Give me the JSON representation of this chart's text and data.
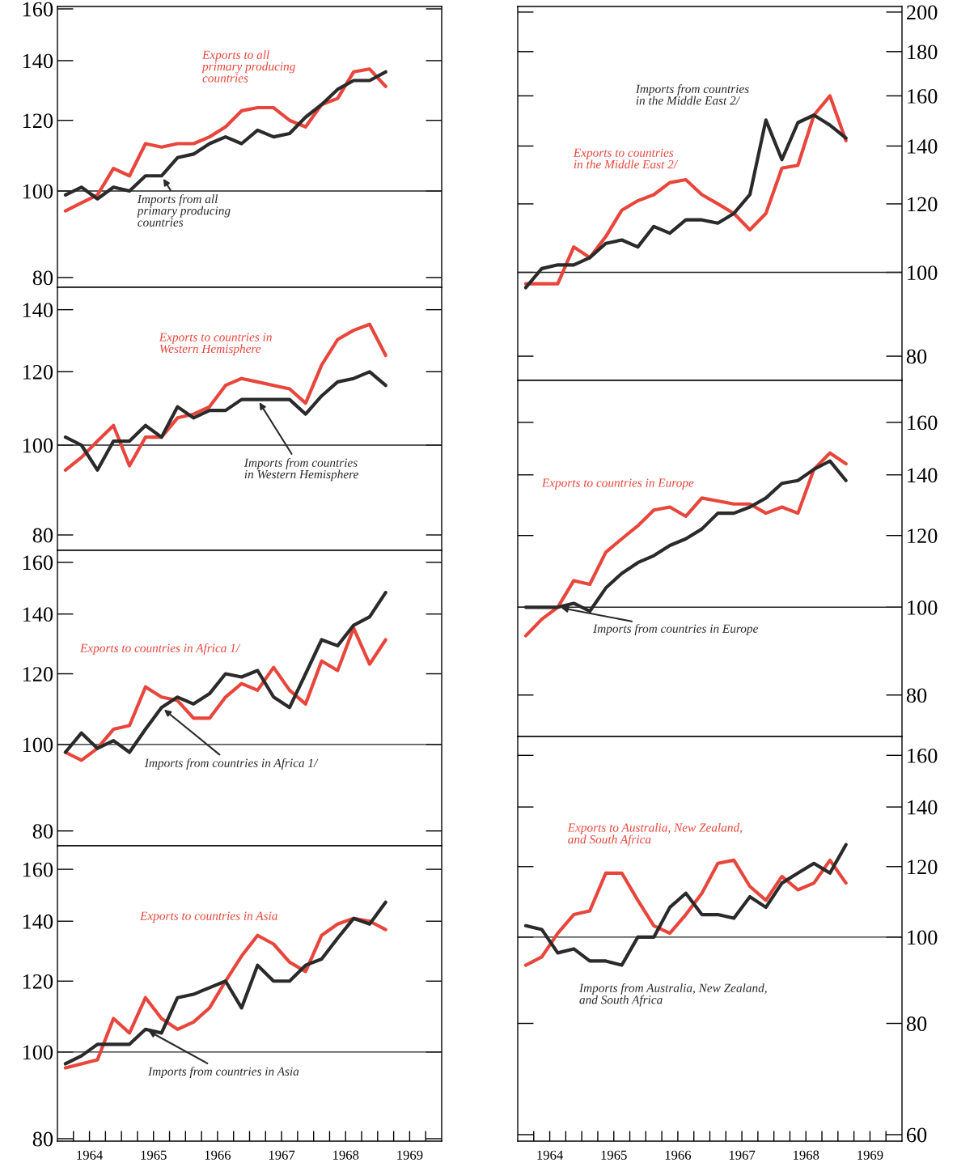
{
  "chart_data": [
    {
      "type": "line",
      "log": "y",
      "xlim": [
        1964,
        1970
      ],
      "ylim": [
        78,
        161
      ],
      "yticks": [
        80,
        100,
        120,
        140,
        160
      ],
      "tick_labels": "y",
      "x": [
        1964.125,
        1964.375,
        1964.625,
        1964.875,
        1965.125,
        1965.375,
        1965.625,
        1965.875,
        1966.125,
        1966.375,
        1966.625,
        1966.875,
        1967.125,
        1967.375,
        1967.625,
        1967.875,
        1968.125,
        1968.375,
        1968.625,
        1968.875,
        1969.125
      ],
      "ref_lines": [
        {
          "axis": "y",
          "value": 100
        }
      ],
      "series": [
        {
          "name": "Exports to all\nprimary producing\ncountries",
          "color": "#e8463c",
          "values": [
            95,
            97,
            99,
            106,
            104,
            113,
            112,
            113,
            113,
            115,
            118,
            123,
            124,
            124,
            120,
            118,
            125,
            127,
            136,
            137,
            131
          ]
        },
        {
          "name": "Imports from all\nprimary producing\ncountries",
          "color": "#2a2a2a",
          "values": [
            99,
            101,
            98,
            101,
            100,
            104,
            104,
            109,
            110,
            113,
            115,
            113,
            117,
            115,
            116,
            121,
            125,
            130,
            133,
            133,
            136
          ]
        }
      ]
    },
    {
      "type": "line",
      "log": "y",
      "xlim": [
        1964,
        1970
      ],
      "ylim": [
        77,
        148
      ],
      "yticks": [
        80,
        100,
        120,
        140
      ],
      "tick_labels": "y",
      "x": [
        1964.125,
        1964.375,
        1964.625,
        1964.875,
        1965.125,
        1965.375,
        1965.625,
        1965.875,
        1966.125,
        1966.375,
        1966.625,
        1966.875,
        1967.125,
        1967.375,
        1967.625,
        1967.875,
        1968.125,
        1968.375,
        1968.625,
        1968.875,
        1969.125
      ],
      "ref_lines": [
        {
          "axis": "y",
          "value": 100
        }
      ],
      "series": [
        {
          "name": "Exports to countries in\nWestern Hemisphere",
          "color": "#e8463c",
          "values": [
            94,
            97,
            101,
            105,
            95,
            102,
            102,
            107,
            108,
            110,
            116,
            118,
            117,
            116,
            115,
            111,
            122,
            130,
            133,
            135,
            125
          ]
        },
        {
          "name": "Imports from countries\nin Western Hemisphere",
          "color": "#2a2a2a",
          "values": [
            102,
            100,
            94,
            101,
            101,
            105,
            102,
            110,
            107,
            109,
            109,
            112,
            112,
            112,
            112,
            108,
            113,
            117,
            118,
            120,
            116
          ]
        }
      ]
    },
    {
      "type": "line",
      "log": "y",
      "xlim": [
        1964,
        1970
      ],
      "ylim": [
        77,
        165
      ],
      "yticks": [
        80,
        100,
        120,
        140,
        160
      ],
      "tick_labels": "y",
      "x": [
        1964.125,
        1964.375,
        1964.625,
        1964.875,
        1965.125,
        1965.375,
        1965.625,
        1965.875,
        1966.125,
        1966.375,
        1966.625,
        1966.875,
        1967.125,
        1967.375,
        1967.625,
        1967.875,
        1968.125,
        1968.375,
        1968.625,
        1968.875,
        1969.125
      ],
      "ref_lines": [
        {
          "axis": "y",
          "value": 100
        }
      ],
      "series": [
        {
          "name": "Exports to countries in Africa 1/",
          "color": "#e8463c",
          "values": [
            98,
            96,
            99,
            104,
            105,
            116,
            113,
            112,
            107,
            107,
            113,
            117,
            115,
            122,
            115,
            111,
            124,
            121,
            135,
            123,
            131
          ]
        },
        {
          "name": "Imports from countries in Africa 1/",
          "color": "#2a2a2a",
          "values": [
            98,
            103,
            99,
            101,
            98,
            104,
            110,
            113,
            111,
            114,
            120,
            119,
            121,
            113,
            110,
            120,
            131,
            129,
            136,
            139,
            148
          ]
        }
      ]
    },
    {
      "type": "line",
      "log": "y",
      "xlim": [
        1964,
        1970
      ],
      "ylim": [
        79.5,
        170
      ],
      "yticks": [
        80,
        100,
        120,
        140,
        160
      ],
      "xticks": [
        {
          "value": 1964.25,
          "label": null
        },
        {
          "value": 1964.5,
          "label": "1964"
        },
        {
          "value": 1964.75,
          "label": null
        },
        {
          "value": 1965,
          "label": null
        },
        {
          "value": 1965.25,
          "label": null
        },
        {
          "value": 1965.5,
          "label": "1965"
        },
        {
          "value": 1965.75,
          "label": null
        },
        {
          "value": 1966,
          "label": null
        },
        {
          "value": 1966.25,
          "label": null
        },
        {
          "value": 1966.5,
          "label": "1966"
        },
        {
          "value": 1966.75,
          "label": null
        },
        {
          "value": 1967,
          "label": null
        },
        {
          "value": 1967.25,
          "label": null
        },
        {
          "value": 1967.5,
          "label": "1967"
        },
        {
          "value": 1967.75,
          "label": null
        },
        {
          "value": 1968,
          "label": null
        },
        {
          "value": 1968.25,
          "label": null
        },
        {
          "value": 1968.5,
          "label": "1968"
        },
        {
          "value": 1968.75,
          "label": null
        },
        {
          "value": 1969,
          "label": null
        },
        {
          "value": 1969.25,
          "label": null
        },
        {
          "value": 1969.5,
          "label": "1969"
        },
        {
          "value": 1969.75,
          "label": null
        }
      ],
      "x": [
        1964.125,
        1964.375,
        1964.625,
        1964.875,
        1965.125,
        1965.375,
        1965.625,
        1965.875,
        1966.125,
        1966.375,
        1966.625,
        1966.875,
        1967.125,
        1967.375,
        1967.625,
        1967.875,
        1968.125,
        1968.375,
        1968.625,
        1968.875,
        1969.125
      ],
      "ref_lines": [
        {
          "axis": "y",
          "value": 100
        }
      ],
      "series": [
        {
          "name": "Exports to countries in Asia",
          "color": "#e8463c",
          "values": [
            96,
            97,
            98,
            109,
            105,
            115,
            109,
            106,
            108,
            112,
            120,
            128,
            135,
            132,
            126,
            123,
            135,
            139,
            141,
            140,
            137
          ]
        },
        {
          "name": "Imports from countries in Asia",
          "color": "#2a2a2a",
          "values": [
            97,
            99,
            102,
            102,
            102,
            106,
            105,
            115,
            116,
            118,
            120,
            112,
            125,
            120,
            120,
            125,
            127,
            134,
            141,
            139,
            147
          ]
        }
      ]
    },
    {
      "type": "line",
      "log": "y2",
      "xlim": [
        1964,
        1970
      ],
      "y2lim": [
        75,
        203
      ],
      "y2ticks": [
        80,
        100,
        120,
        140,
        160,
        180,
        200
      ],
      "tick_labels": "y2",
      "x": [
        1964.125,
        1964.375,
        1964.625,
        1964.875,
        1965.125,
        1965.375,
        1965.625,
        1965.875,
        1966.125,
        1966.375,
        1966.625,
        1966.875,
        1967.125,
        1967.375,
        1967.625,
        1967.875,
        1968.125,
        1968.375,
        1968.625,
        1968.875,
        1969.125
      ],
      "ref_lines": [
        {
          "axis": "y2",
          "value": 100
        }
      ],
      "series": [
        {
          "name": "Exports to countries\nin the Middle East 2/",
          "color": "#e8463c",
          "axis": "y2",
          "values": [
            97,
            97,
            97,
            107,
            104,
            110,
            118,
            121,
            123,
            127,
            128,
            123,
            120,
            117,
            112,
            117,
            132,
            133,
            152,
            160,
            142
          ]
        },
        {
          "name": "Imports from countries\nin the Middle East 2/",
          "color": "#2a2a2a",
          "axis": "y2",
          "values": [
            96,
            101,
            102,
            102,
            104,
            108,
            109,
            107,
            113,
            111,
            115,
            115,
            114,
            117,
            123,
            150,
            135,
            149,
            152,
            148,
            143
          ]
        }
      ]
    },
    {
      "type": "line",
      "log": "y2",
      "xlim": [
        1964,
        1970
      ],
      "y2lim": [
        72,
        178
      ],
      "y2ticks": [
        80,
        100,
        120,
        140,
        160
      ],
      "tick_labels": "y2",
      "x": [
        1964.125,
        1964.375,
        1964.625,
        1964.875,
        1965.125,
        1965.375,
        1965.625,
        1965.875,
        1966.125,
        1966.375,
        1966.625,
        1966.875,
        1967.125,
        1967.375,
        1967.625,
        1967.875,
        1968.125,
        1968.375,
        1968.625,
        1968.875,
        1969.125
      ],
      "ref_lines": [
        {
          "axis": "y2",
          "value": 100
        }
      ],
      "series": [
        {
          "name": "Exports to countries in Europe",
          "color": "#e8463c",
          "axis": "y2",
          "values": [
            93,
            97,
            100,
            107,
            106,
            115,
            119,
            123,
            128,
            129,
            126,
            132,
            131,
            130,
            130,
            127,
            129,
            127,
            142,
            148,
            144
          ]
        },
        {
          "name": "Imports from countries in Europe",
          "color": "#2a2a2a",
          "axis": "y2",
          "values": [
            100,
            100,
            100,
            101,
            99,
            105,
            109,
            112,
            114,
            117,
            119,
            122,
            127,
            127,
            129,
            132,
            137,
            138,
            142,
            145,
            138
          ]
        }
      ]
    },
    {
      "type": "line",
      "log": "y2",
      "xlim": [
        1964,
        1970
      ],
      "y2lim": [
        59,
        168
      ],
      "y2ticks": [
        60,
        80,
        100,
        120,
        140,
        160
      ],
      "xticks": [
        {
          "value": 1964.25,
          "label": null
        },
        {
          "value": 1964.5,
          "label": "1964"
        },
        {
          "value": 1964.75,
          "label": null
        },
        {
          "value": 1965,
          "label": null
        },
        {
          "value": 1965.25,
          "label": null
        },
        {
          "value": 1965.5,
          "label": "1965"
        },
        {
          "value": 1965.75,
          "label": null
        },
        {
          "value": 1966,
          "label": null
        },
        {
          "value": 1966.25,
          "label": null
        },
        {
          "value": 1966.5,
          "label": "1966"
        },
        {
          "value": 1966.75,
          "label": null
        },
        {
          "value": 1967,
          "label": null
        },
        {
          "value": 1967.25,
          "label": null
        },
        {
          "value": 1967.5,
          "label": "1967"
        },
        {
          "value": 1967.75,
          "label": null
        },
        {
          "value": 1968,
          "label": null
        },
        {
          "value": 1968.25,
          "label": null
        },
        {
          "value": 1968.5,
          "label": "1968"
        },
        {
          "value": 1968.75,
          "label": null
        },
        {
          "value": 1969,
          "label": null
        },
        {
          "value": 1969.25,
          "label": null
        },
        {
          "value": 1969.5,
          "label": "1969"
        },
        {
          "value": 1969.75,
          "label": null
        }
      ],
      "x": [
        1964.125,
        1964.375,
        1964.625,
        1964.875,
        1965.125,
        1965.375,
        1965.625,
        1965.875,
        1966.125,
        1966.375,
        1966.625,
        1966.875,
        1967.125,
        1967.375,
        1967.625,
        1967.875,
        1968.125,
        1968.375,
        1968.625,
        1968.875,
        1969.125
      ],
      "ref_lines": [
        {
          "axis": "y2",
          "value": 100
        }
      ],
      "series": [
        {
          "name": "Exports to Australia, New Zealand,\nand South Africa",
          "color": "#e8463c",
          "axis": "y2",
          "values": [
            93,
            95,
            101,
            106,
            107,
            118,
            118,
            110,
            103,
            101,
            106,
            112,
            121,
            122,
            114,
            110,
            117,
            113,
            115,
            122,
            115
          ]
        },
        {
          "name": "Imports from Australia, New Zealand,\nand South Africa",
          "color": "#2a2a2a",
          "axis": "y2",
          "values": [
            103,
            102,
            96,
            97,
            94,
            94,
            93,
            100,
            100,
            108,
            112,
            106,
            106,
            105,
            111,
            108,
            115,
            118,
            121,
            118,
            127
          ]
        }
      ]
    }
  ]
}
